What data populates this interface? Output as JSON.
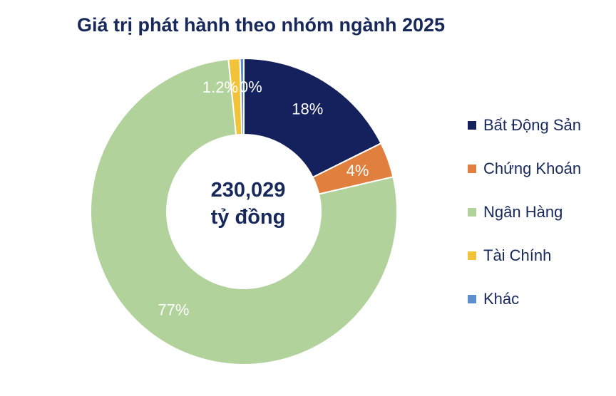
{
  "title": "Giá trị phát hành theo nhóm ngành 2025",
  "center": {
    "line1": "230,029",
    "line2": "tỷ đồng"
  },
  "chart_data": {
    "type": "pie",
    "title": "Giá trị phát hành theo nhóm ngành 2025",
    "donut": true,
    "legend_position": "right",
    "slices": [
      {
        "name": "Bất Động Sản",
        "value": 17.6,
        "label": "18%",
        "color": "#14215c"
      },
      {
        "name": "Chứng Khoán",
        "value": 3.7,
        "label": "4%",
        "color": "#e07f3e"
      },
      {
        "name": "Ngân Hàng",
        "value": 76.8,
        "label": "77%",
        "color": "#b2d29b"
      },
      {
        "name": "Tài Chính",
        "value": 1.2,
        "label": "1.2%",
        "color": "#f2c239"
      },
      {
        "name": "Khác",
        "value": 0.4,
        "label": "0%",
        "color": "#5b8fd0"
      }
    ]
  }
}
